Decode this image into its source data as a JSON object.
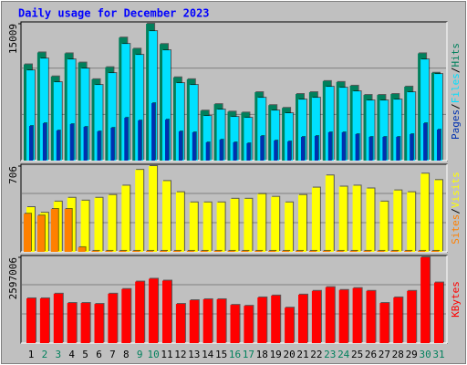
{
  "title": "Daily usage for December 2023",
  "legend_separator": "/",
  "chart_data": [
    {
      "type": "bar",
      "ylim": [
        0,
        15009
      ],
      "yticks": [
        15009
      ],
      "series": [
        {
          "name": "Hits",
          "color": "#00805C",
          "values": [
            10550,
            11860,
            9230,
            11760,
            10750,
            8920,
            10240,
            13490,
            12270,
            15009,
            12780,
            9130,
            8920,
            5480,
            6190,
            5370,
            5270,
            7500,
            6080,
            5780,
            7300,
            7500,
            8720,
            8620,
            8210,
            7200,
            7200,
            7300,
            8110,
            11760,
            9630
          ]
        },
        {
          "name": "Files",
          "color": "#00E0FF",
          "values": [
            9900,
            11200,
            8600,
            11100,
            10100,
            8300,
            9600,
            12800,
            11600,
            14200,
            12100,
            8500,
            8300,
            4900,
            5600,
            4800,
            4700,
            6900,
            5500,
            5200,
            6700,
            6900,
            8100,
            8000,
            7600,
            6600,
            6600,
            6700,
            7500,
            11100,
            9500
          ]
        },
        {
          "name": "Pages",
          "color": "#0030B0",
          "values": [
            3800,
            4100,
            3300,
            4000,
            3700,
            3200,
            3600,
            4700,
            4400,
            6300,
            4500,
            3200,
            3100,
            2000,
            2300,
            2000,
            1900,
            2700,
            2200,
            2100,
            2600,
            2700,
            3100,
            3100,
            2900,
            2600,
            2600,
            2600,
            2900,
            4100,
            3400
          ]
        }
      ]
    },
    {
      "type": "bar",
      "ylim": [
        0,
        706
      ],
      "yticks": [
        706
      ],
      "series": [
        {
          "name": "Visits",
          "color": "#FFFF00",
          "values": [
            368,
            322,
            414,
            445,
            422,
            445,
            468,
            545,
            675,
            706,
            583,
            491,
            407,
            407,
            407,
            437,
            437,
            476,
            453,
            407,
            468,
            529,
            629,
            537,
            545,
            522,
            414,
            506,
            491,
            644,
            591
          ]
        },
        {
          "name": "Sites",
          "color": "#FF8000",
          "values": [
            314,
            299,
            353,
            353,
            38,
            8,
            8,
            8,
            8,
            8,
            8,
            8,
            8,
            8,
            8,
            8,
            8,
            8,
            8,
            8,
            8,
            8,
            8,
            8,
            8,
            8,
            8,
            8,
            8,
            8,
            8
          ]
        }
      ]
    },
    {
      "type": "bar",
      "ylim": [
        0,
        2597006
      ],
      "yticks": [
        2597006
      ],
      "categories": [
        "1",
        "2",
        "3",
        "4",
        "5",
        "6",
        "7",
        "8",
        "9",
        "10",
        "11",
        "12",
        "13",
        "14",
        "15",
        "16",
        "17",
        "18",
        "19",
        "20",
        "21",
        "22",
        "23",
        "24",
        "25",
        "26",
        "27",
        "28",
        "29",
        "30",
        "31"
      ],
      "category_colors": [
        "#000000",
        "#00805C",
        "#00805C",
        "#000000",
        "#000000",
        "#000000",
        "#000000",
        "#000000",
        "#00805C",
        "#00805C",
        "#000000",
        "#000000",
        "#000000",
        "#000000",
        "#000000",
        "#00805C",
        "#00805C",
        "#000000",
        "#000000",
        "#000000",
        "#000000",
        "#000000",
        "#00805C",
        "#00805C",
        "#000000",
        "#000000",
        "#000000",
        "#000000",
        "#000000",
        "#00805C",
        "#00805C"
      ],
      "series": [
        {
          "name": "KBytes",
          "color": "#FF0000",
          "values": [
            1355000,
            1355000,
            1496000,
            1214000,
            1214000,
            1186000,
            1496000,
            1637000,
            1863000,
            1948000,
            1891000,
            1186000,
            1298000,
            1327000,
            1327000,
            1157000,
            1129000,
            1383000,
            1440000,
            1073000,
            1468000,
            1581000,
            1694000,
            1609000,
            1665000,
            1581000,
            1214000,
            1383000,
            1581000,
            2597006,
            1835000
          ]
        }
      ]
    }
  ]
}
